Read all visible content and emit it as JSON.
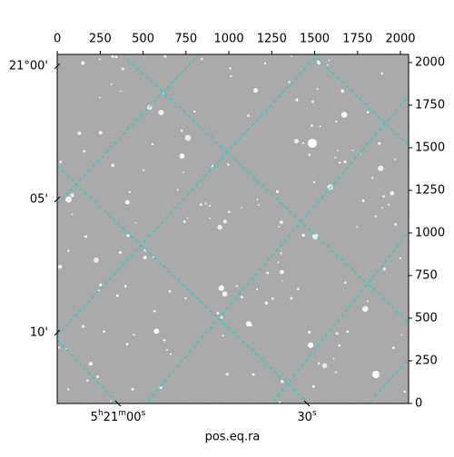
{
  "chart_data": {
    "type": "image",
    "xlabel": "pos.eq.ra",
    "xlim": [
      -0.5,
      2047.5
    ],
    "ylim": [
      -0.5,
      2047.5
    ],
    "xticks": [
      0,
      250,
      500,
      750,
      1000,
      1250,
      1500,
      1750,
      2000
    ],
    "yticks": [
      0,
      250,
      500,
      750,
      1000,
      1250,
      1500,
      1750,
      2000
    ],
    "ra_ticks": [
      {
        "value": 354,
        "label": "5h21m00s"
      },
      {
        "value": 1455,
        "label": "30s"
      }
    ],
    "dec_ticks": [
      {
        "value": 1978,
        "label": "21°00'"
      },
      {
        "value": 1197,
        "label": "05'"
      },
      {
        "value": 415,
        "label": "10'"
      }
    ],
    "grid_color": "#00d5d5"
  }
}
